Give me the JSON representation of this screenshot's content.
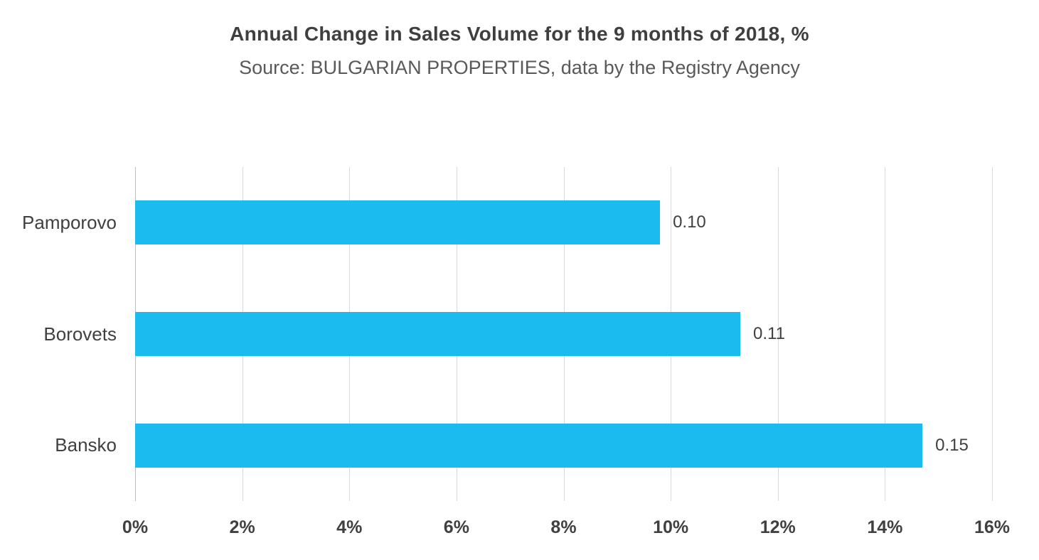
{
  "chart_data": {
    "type": "bar",
    "orientation": "horizontal",
    "title": "Annual Change in Sales Volume for the 9 months of 2018, %",
    "subtitle": "Source: BULGARIAN PROPERTIES, data by the Registry Agency",
    "categories": [
      "Pamporovo",
      "Borovets",
      "Bansko"
    ],
    "values": [
      9.8,
      11.3,
      14.7
    ],
    "data_labels": [
      "0.10",
      "0.11",
      "0.15"
    ],
    "x_ticks": [
      "0%",
      "2%",
      "4%",
      "6%",
      "8%",
      "10%",
      "12%",
      "14%",
      "16%"
    ],
    "xlim": [
      0,
      16
    ],
    "grid": true,
    "legend": "none",
    "bar_color": "#1cbbef",
    "text_color": "#404040",
    "grid_color": "#d9d9d9"
  }
}
